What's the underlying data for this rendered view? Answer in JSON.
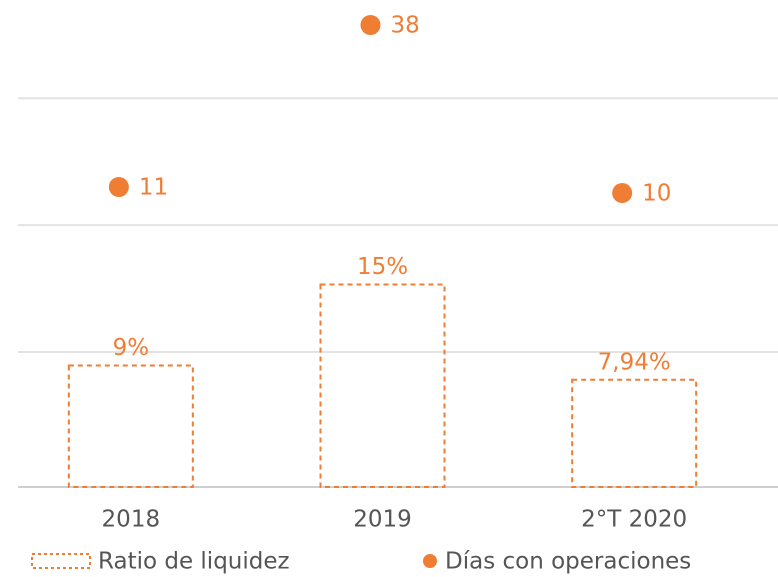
{
  "chart_data": {
    "type": "bar",
    "categories": [
      "2018",
      "2019",
      "2°T 2020"
    ],
    "ylim": [
      0,
      36
    ],
    "yticks": [
      0,
      10,
      19.4,
      28.8
    ],
    "grid": true,
    "y2lim": [
      -39,
      42
    ],
    "series": [
      {
        "name": "Ratio de liquidez",
        "color": "#f07d34",
        "values": [
          9,
          15,
          7.94
        ],
        "value_labels": [
          "9%",
          "15%",
          "7,94%"
        ]
      },
      {
        "name": "Días con operaciones",
        "color": "#f07d34",
        "axis": "y2",
        "type": "scatter",
        "values": [
          11,
          38,
          10
        ]
      }
    ]
  }
}
